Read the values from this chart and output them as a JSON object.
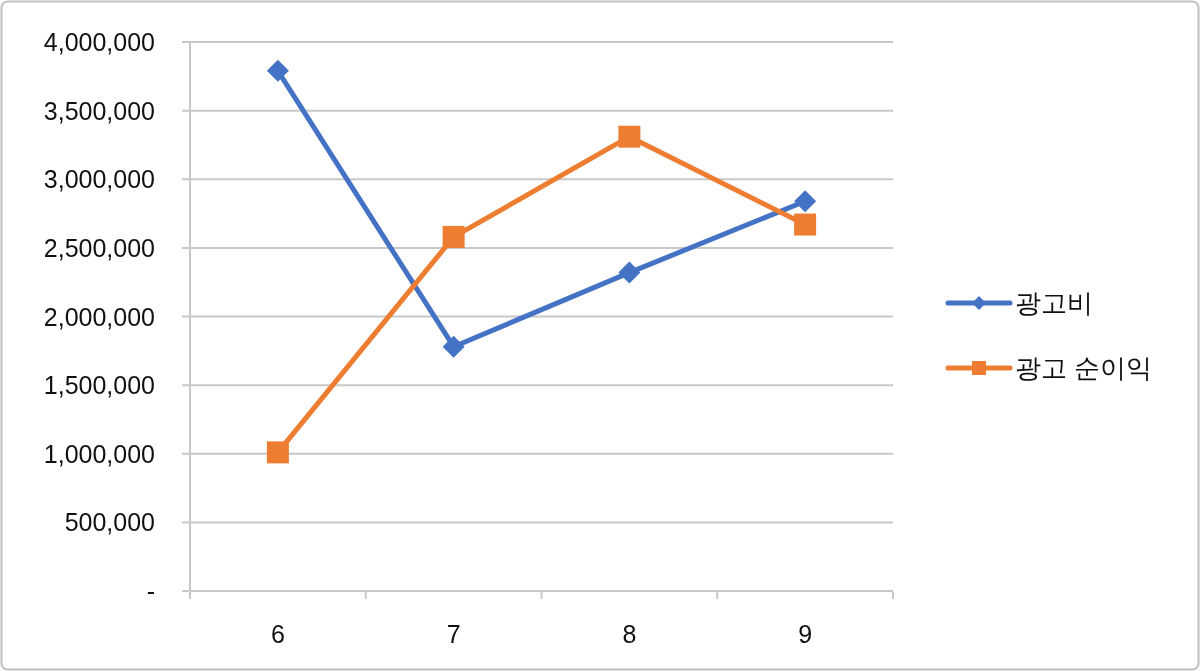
{
  "chart_data": {
    "type": "line",
    "categories": [
      "6",
      "7",
      "8",
      "9"
    ],
    "series": [
      {
        "name": "광고비",
        "color": "#4472c4",
        "marker": "diamond",
        "values": [
          3790000,
          1780000,
          2320000,
          2840000
        ]
      },
      {
        "name": "광고 순이익",
        "color": "#ed7d31",
        "marker": "square",
        "values": [
          1010000,
          2580000,
          3310000,
          2670000
        ]
      }
    ],
    "ylim": [
      0,
      4000000
    ],
    "yticks": [
      {
        "value": 0,
        "label": "-"
      },
      {
        "value": 500000,
        "label": "500,000"
      },
      {
        "value": 1000000,
        "label": "1,000,000"
      },
      {
        "value": 1500000,
        "label": "1,500,000"
      },
      {
        "value": 2000000,
        "label": "2,000,000"
      },
      {
        "value": 2500000,
        "label": "2,500,000"
      },
      {
        "value": 3000000,
        "label": "3,000,000"
      },
      {
        "value": 3500000,
        "label": "3,500,000"
      },
      {
        "value": 4000000,
        "label": "4,000,000"
      }
    ],
    "grid": "y",
    "legend": "right"
  }
}
